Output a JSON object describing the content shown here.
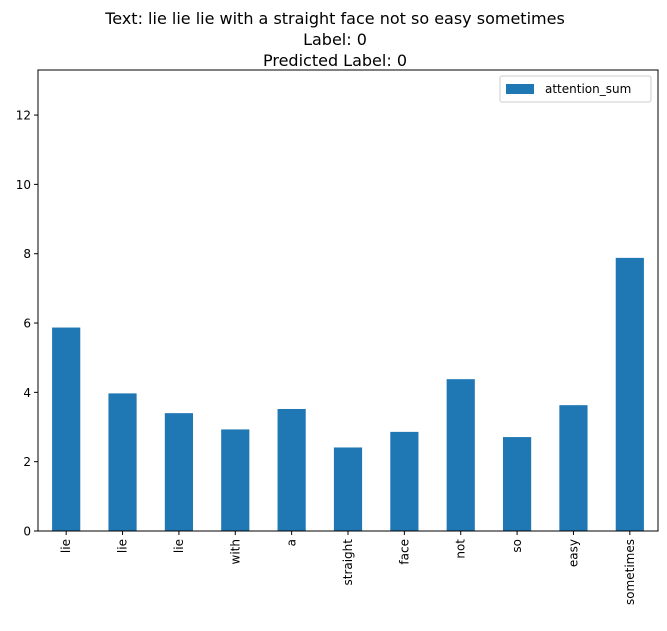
{
  "chart_data": {
    "type": "bar",
    "title_lines": [
      "Text: lie lie lie with a straight face not so easy sometimes",
      "Label: 0",
      "Predicted Label: 0"
    ],
    "xlabel": "",
    "ylabel": "",
    "categories": [
      "lie",
      "lie",
      "lie",
      "with",
      "a",
      "straight",
      "face",
      "not",
      "so",
      "easy",
      "sometimes"
    ],
    "series": [
      {
        "name": "attention_sum",
        "color": "#1f77b4",
        "values": [
          5.87,
          3.97,
          3.4,
          2.93,
          3.52,
          2.41,
          2.86,
          4.38,
          2.71,
          3.63,
          7.88
        ]
      }
    ],
    "ylim": [
      0,
      13.3
    ],
    "yticks": [
      0,
      2,
      4,
      6,
      8,
      10,
      12
    ],
    "grid": false,
    "legend_position": "top-right"
  }
}
